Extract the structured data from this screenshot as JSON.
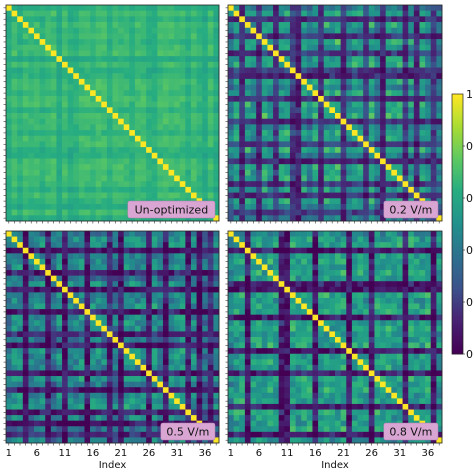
{
  "chart_data": [
    {
      "type": "heatmap",
      "title": "",
      "xlabel": "",
      "ylabel": "",
      "label": "Un-optimized",
      "n": 38,
      "row_scale": [
        0.7,
        1.0,
        0.75,
        1.0,
        0.9,
        1.0,
        0.8,
        1.0,
        1.05,
        0.6,
        1.0,
        0.7,
        0.8,
        1.0,
        1.0,
        0.9,
        1.05,
        1.0,
        0.75,
        1.0,
        1.0,
        0.95,
        0.8,
        1.0,
        1.0,
        0.75,
        0.7,
        1.0,
        1.05,
        1.0,
        1.0,
        0.95,
        0.7,
        1.0,
        0.8,
        0.6,
        1.0,
        0.65
      ],
      "base": 0.5,
      "contrast": 0.2,
      "variation": 0.03
    },
    {
      "type": "heatmap",
      "title": "",
      "xlabel": "",
      "ylabel": "",
      "label": "0.2 V/m",
      "n": 38,
      "row_scale": [
        0.6,
        0.85,
        0.05,
        0.9,
        0.7,
        0.1,
        0.95,
        0.8,
        0.15,
        0.85,
        0.9,
        0.2,
        0.05,
        0.9,
        0.6,
        0.85,
        0.1,
        0.9,
        0.8,
        0.95,
        0.1,
        0.7,
        0.9,
        0.85,
        0.2,
        0.9,
        0.6,
        0.05,
        0.9,
        0.85,
        0.9,
        0.15,
        0.8,
        0.1,
        0.9,
        0.7,
        0.2,
        0.6
      ],
      "base": 0.1,
      "contrast": 0.65,
      "variation": 0.1
    },
    {
      "type": "heatmap",
      "title": "",
      "xlabel": "",
      "ylabel": "",
      "label": "0.5 V/m",
      "n": 38,
      "row_scale": [
        0.65,
        0.85,
        0.9,
        0.05,
        0.8,
        0.9,
        0.85,
        0.1,
        0.6,
        0.9,
        0.05,
        0.85,
        0.8,
        0.9,
        0.1,
        0.85,
        0.9,
        0.85,
        0.15,
        0.7,
        0.05,
        0.9,
        0.9,
        0.85,
        0.8,
        0.1,
        0.9,
        0.75,
        0.05,
        0.85,
        0.9,
        0.95,
        0.1,
        0.8,
        0.05,
        0.6,
        0.2,
        0.75
      ],
      "base": 0.05,
      "contrast": 0.6,
      "variation": 0.12
    },
    {
      "type": "heatmap",
      "title": "",
      "xlabel": "Index",
      "ylabel": "",
      "label": "0.8 V/m",
      "n": 38,
      "row_scale": [
        0.7,
        0.85,
        0.9,
        0.05,
        0.85,
        0.9,
        0.8,
        0.9,
        0.85,
        0.1,
        0.05,
        0.9,
        0.8,
        0.85,
        0.9,
        0.05,
        0.85,
        0.9,
        0.8,
        0.85,
        0.9,
        0.05,
        0.85,
        0.9,
        0.85,
        0.1,
        0.9,
        0.85,
        0.9,
        0.8,
        0.85,
        0.1,
        0.9,
        0.85,
        0.8,
        0.9,
        0.05,
        0.75
      ],
      "base": 0.05,
      "contrast": 0.7,
      "variation": 0.12
    }
  ],
  "axis": {
    "xlabel": "Index",
    "ticks": [
      "1",
      "6",
      "11",
      "16",
      "21",
      "26",
      "31",
      "36"
    ]
  },
  "colorbar": {
    "colormap": "viridis",
    "range": [
      0,
      1
    ],
    "top_label": "1",
    "tick_labels": [
      "0",
      "0",
      "0",
      "0",
      "0"
    ]
  }
}
